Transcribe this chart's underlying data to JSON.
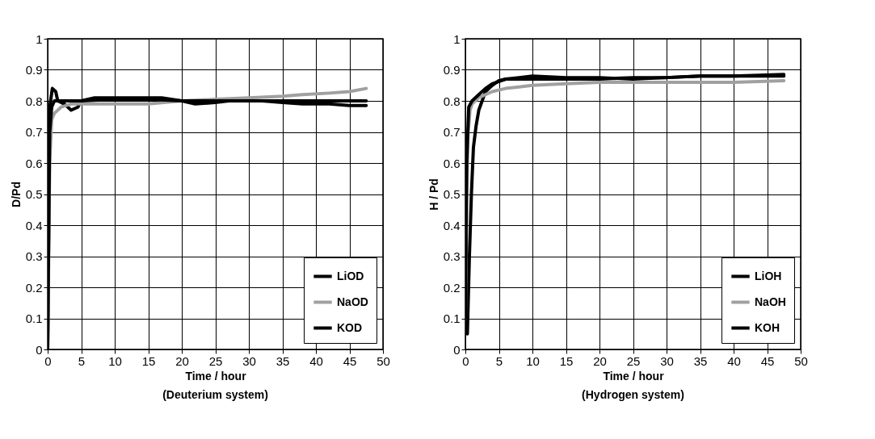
{
  "chart_data": [
    {
      "type": "line",
      "xlabel": "Time / hour",
      "ylabel": "D/Pd",
      "annotations": [
        "(Deuterium system)"
      ],
      "xlim": [
        0,
        50
      ],
      "ylim": [
        0,
        1
      ],
      "xticks": [
        0,
        5,
        10,
        15,
        20,
        25,
        30,
        35,
        40,
        45,
        50
      ],
      "yticks": [
        0,
        0.1,
        0.2,
        0.3,
        0.4,
        0.5,
        0.6,
        0.7,
        0.8,
        0.9,
        1
      ],
      "grid": true,
      "legend": "bottom right",
      "series": [
        {
          "name": "LiOD",
          "color": "#000000",
          "x": [
            0,
            0.3,
            0.7,
            1.2,
            1.5,
            2.5,
            3.5,
            4.5,
            5,
            7,
            10,
            13,
            17,
            20,
            22,
            25,
            27,
            30,
            32,
            35,
            38,
            42,
            45,
            47.5
          ],
          "values": [
            0,
            0.78,
            0.84,
            0.83,
            0.8,
            0.79,
            0.77,
            0.78,
            0.8,
            0.81,
            0.81,
            0.81,
            0.81,
            0.8,
            0.79,
            0.795,
            0.8,
            0.8,
            0.8,
            0.795,
            0.79,
            0.79,
            0.785,
            0.785
          ]
        },
        {
          "name": "NaOD",
          "color": "#a0a0a0",
          "x": [
            0,
            0.3,
            0.6,
            1,
            2,
            3.5,
            5,
            10,
            15,
            20,
            25,
            30,
            35,
            38,
            42,
            45,
            47.5
          ],
          "values": [
            0,
            0.6,
            0.74,
            0.76,
            0.78,
            0.79,
            0.79,
            0.79,
            0.79,
            0.8,
            0.805,
            0.81,
            0.815,
            0.82,
            0.825,
            0.83,
            0.84
          ]
        },
        {
          "name": "KOD",
          "color": "#000000",
          "x": [
            0,
            0.3,
            0.6,
            1,
            2,
            5,
            10,
            15,
            20,
            25,
            30,
            35,
            40,
            47.5
          ],
          "values": [
            0,
            0.7,
            0.78,
            0.8,
            0.8,
            0.8,
            0.805,
            0.805,
            0.8,
            0.8,
            0.8,
            0.8,
            0.8,
            0.8
          ]
        }
      ]
    },
    {
      "type": "line",
      "xlabel": "Time / hour",
      "ylabel": "H / Pd",
      "annotations": [
        "(Hydrogen system)"
      ],
      "xlim": [
        0,
        50
      ],
      "ylim": [
        0,
        1
      ],
      "xticks": [
        0,
        5,
        10,
        15,
        20,
        25,
        30,
        35,
        40,
        45,
        50
      ],
      "yticks": [
        0,
        0.1,
        0.2,
        0.3,
        0.4,
        0.5,
        0.6,
        0.7,
        0.8,
        0.9,
        1
      ],
      "grid": true,
      "legend": "bottom right",
      "series": [
        {
          "name": "LiOH",
          "color": "#000000",
          "x": [
            0.3,
            0.6,
            0.9,
            1.2,
            1.6,
            2,
            2.5,
            3,
            4,
            5,
            6,
            8,
            10,
            15,
            20,
            25,
            30,
            35,
            40,
            47.5
          ],
          "values": [
            0.05,
            0.3,
            0.5,
            0.65,
            0.72,
            0.77,
            0.8,
            0.83,
            0.85,
            0.865,
            0.87,
            0.875,
            0.88,
            0.875,
            0.875,
            0.87,
            0.875,
            0.88,
            0.88,
            0.885
          ]
        },
        {
          "name": "NaOH",
          "color": "#a0a0a0",
          "x": [
            0,
            0.2,
            0.4,
            0.7,
            1,
            2,
            3,
            4,
            6,
            8,
            10,
            15,
            20,
            25,
            30,
            35,
            40,
            47.5
          ],
          "values": [
            0.1,
            0.5,
            0.7,
            0.77,
            0.79,
            0.81,
            0.82,
            0.83,
            0.84,
            0.845,
            0.85,
            0.855,
            0.86,
            0.86,
            0.86,
            0.86,
            0.86,
            0.865
          ]
        },
        {
          "name": "KOH",
          "color": "#000000",
          "x": [
            0,
            0.2,
            0.5,
            1,
            2,
            3,
            4,
            6,
            10,
            15,
            20,
            25,
            30,
            35,
            40,
            47.5
          ],
          "values": [
            0.1,
            0.6,
            0.78,
            0.8,
            0.82,
            0.84,
            0.855,
            0.87,
            0.87,
            0.87,
            0.87,
            0.875,
            0.875,
            0.88,
            0.88,
            0.88
          ]
        }
      ]
    }
  ]
}
